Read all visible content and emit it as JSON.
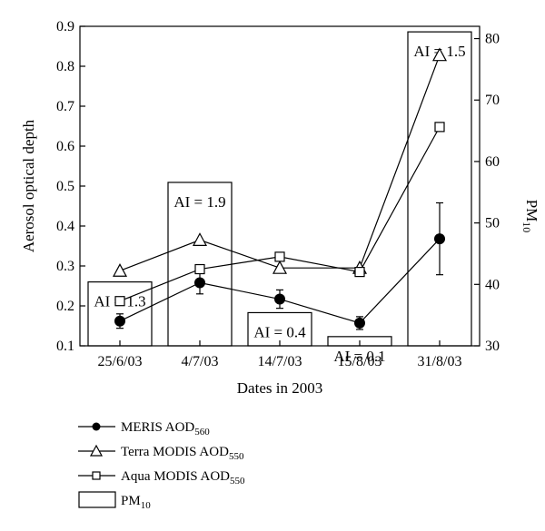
{
  "chart_data": {
    "type": "bar+line",
    "categories": [
      "25/6/03",
      "4/7/03",
      "14/7/03",
      "15/8/03",
      "31/8/03"
    ],
    "xlabel": "Dates in 2003",
    "ylabel": "Aerosol optical depth",
    "y2label_main": "PM",
    "y2label_sub": "10",
    "ylim": [
      0.1,
      0.9
    ],
    "y2lim": [
      30,
      82
    ],
    "yticks": [
      "0.1",
      "0.2",
      "0.3",
      "0.4",
      "0.5",
      "0.6",
      "0.7",
      "0.8",
      "0.9"
    ],
    "y2ticks": [
      "30",
      "40",
      "50",
      "60",
      "70",
      "80"
    ],
    "bars": {
      "name": "PM10",
      "values": [
        40.4,
        56.6,
        35.4,
        31.5,
        81.1
      ],
      "ai_labels": [
        "AI = 1.3",
        "AI = 1.9",
        "AI = 0.4",
        "AI = 0.1",
        "AI = 1.5"
      ]
    },
    "series": [
      {
        "name": "MERIS AOD560",
        "label_main": "MERIS AOD",
        "label_sub": "560",
        "marker": "filled-circle",
        "values": [
          0.162,
          0.258,
          0.217,
          0.157,
          0.368
        ],
        "errors": [
          0.018,
          0.028,
          0.023,
          0.016,
          0.09
        ]
      },
      {
        "name": "Terra MODIS AOD550",
        "label_main": "Terra MODIS AOD",
        "label_sub": "550",
        "marker": "open-triangle",
        "values": [
          0.288,
          0.365,
          0.295,
          0.295,
          0.828
        ]
      },
      {
        "name": "Aqua MODIS AOD550",
        "label_main": "Aqua MODIS AOD",
        "label_sub": "550",
        "marker": "open-square",
        "values": [
          0.212,
          0.292,
          0.323,
          0.285,
          0.648
        ]
      }
    ],
    "legend_bar": {
      "label_main": "PM",
      "label_sub": "10"
    },
    "legend_position": "bottom-left"
  }
}
